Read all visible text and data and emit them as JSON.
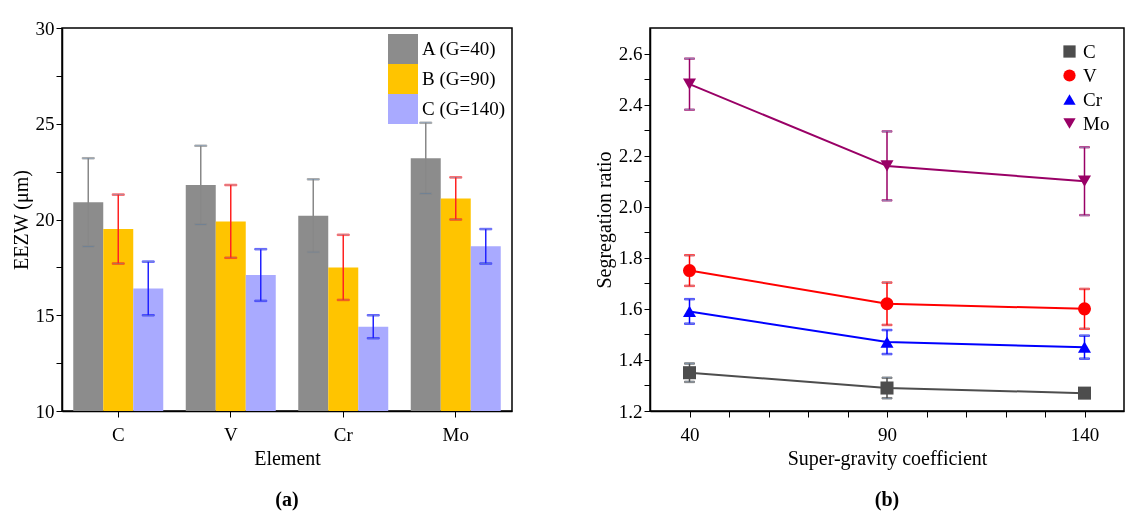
{
  "chart_data": [
    {
      "type": "bar",
      "categories": [
        "C",
        "V",
        "Cr",
        "Mo"
      ],
      "xlabel": "Element",
      "ylabel": "EEZW (μm)",
      "ylim": [
        10,
        30
      ],
      "yticks": [
        10,
        {
          "value": 12.5,
          "label": null
        },
        15,
        {
          "value": 17.5,
          "label": null
        },
        20,
        {
          "value": 22.5,
          "label": null
        },
        25,
        {
          "value": 27.5,
          "label": null
        },
        30
      ],
      "legend": "top right",
      "grid": false,
      "annotations": [
        "(a)"
      ],
      "series": [
        {
          "name": "A (G=40)",
          "color": "#8c8c8c",
          "values": [
            20.9,
            21.8,
            20.2,
            23.2
          ],
          "errors": [
            2.3,
            2.05,
            1.9,
            1.85
          ]
        },
        {
          "name": "B (G=90)",
          "color": "#ffc400",
          "values": [
            19.5,
            19.9,
            17.5,
            21.1
          ],
          "errors": [
            1.8,
            1.9,
            1.7,
            1.1
          ]
        },
        {
          "name": "C (G=140)",
          "color": "#a9aaff",
          "values": [
            16.4,
            17.1,
            14.4,
            18.6
          ],
          "errors": [
            1.4,
            1.35,
            0.6,
            0.9
          ]
        }
      ]
    },
    {
      "type": "line",
      "x": [
        40,
        90,
        140
      ],
      "xlabel": "Super-gravity coefficient",
      "ylabel": "Segregation ratio",
      "xlim": [
        30,
        150
      ],
      "xticks": [
        40,
        {
          "value": 50,
          "label": null
        },
        {
          "value": 60,
          "label": null
        },
        {
          "value": 70,
          "label": null
        },
        {
          "value": 80,
          "label": null
        },
        90,
        {
          "value": 100,
          "label": null
        },
        {
          "value": 110,
          "label": null
        },
        {
          "value": 120,
          "label": null
        },
        {
          "value": 130,
          "label": null
        },
        140
      ],
      "ylim": [
        1.2,
        2.7
      ],
      "yticks": [
        1.2,
        {
          "value": 1.3,
          "label": null
        },
        1.4,
        {
          "value": 1.5,
          "label": null
        },
        1.6,
        {
          "value": 1.7,
          "label": null
        },
        1.8,
        {
          "value": 1.9,
          "label": null
        },
        {
          "value": 2.0,
          "label": "2.0"
        },
        {
          "value": 2.1,
          "label": null
        },
        2.2,
        {
          "value": 2.3,
          "label": null
        },
        2.4,
        {
          "value": 2.5,
          "label": null
        },
        2.6
      ],
      "legend": "top right",
      "grid": false,
      "line_style": "solid",
      "annotations": [
        "(b)"
      ],
      "series": [
        {
          "name": "C",
          "color": "#4d4d4d",
          "marker": "square",
          "values": [
            1.35,
            1.29,
            1.27
          ],
          "errors": [
            0.036,
            0.04,
            null
          ]
        },
        {
          "name": "V",
          "color": "#ff0000",
          "marker": "circle",
          "values": [
            1.75,
            1.62,
            1.6
          ],
          "errors": [
            0.06,
            0.083,
            0.078
          ]
        },
        {
          "name": "Cr",
          "color": "#0000ff",
          "marker": "triangle",
          "values": [
            1.59,
            1.47,
            1.45
          ],
          "errors": [
            0.048,
            0.047,
            0.045
          ]
        },
        {
          "name": "Mo",
          "color": "#990066",
          "marker": "triangle-down",
          "values": [
            2.48,
            2.16,
            2.1
          ],
          "errors": [
            0.1,
            0.135,
            0.133
          ]
        }
      ]
    }
  ]
}
